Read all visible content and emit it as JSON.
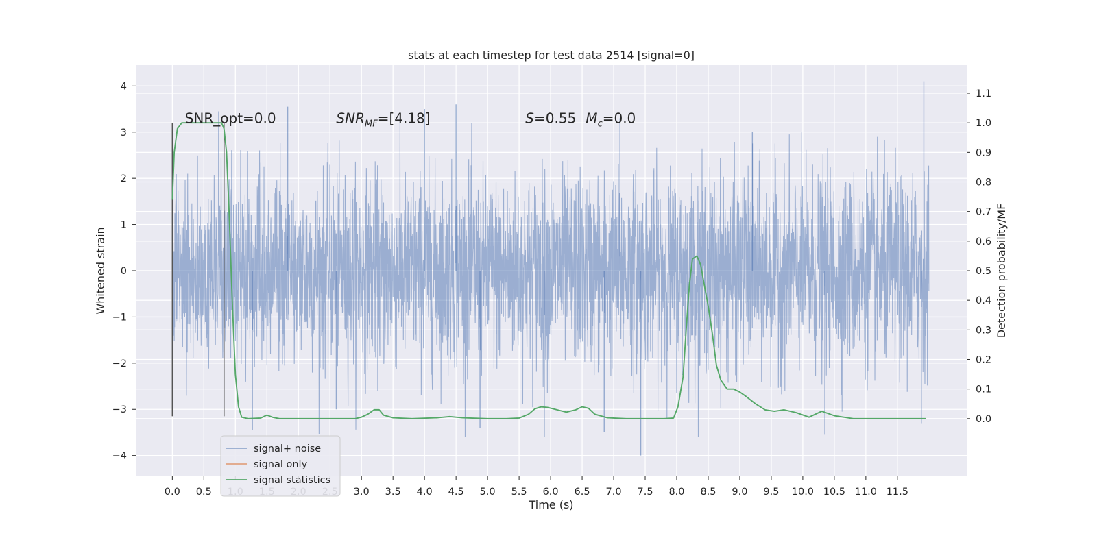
{
  "chart_data": {
    "type": "line",
    "title": "stats at each timestep for test data 2514 [signal=0]",
    "xlabel": "Time (s)",
    "ylabel_left": "Whitened strain",
    "ylabel_right": "Detection probability/MF",
    "xlim": [
      -0.58,
      12.6
    ],
    "ylim_left": [
      -4.45,
      4.45
    ],
    "ylim_right": [
      -0.195,
      1.195
    ],
    "x_ticks": [
      "0.0",
      "0.5",
      "1.0",
      "1.5",
      "2.0",
      "2.5",
      "3.0",
      "3.5",
      "4.0",
      "4.5",
      "5.0",
      "5.5",
      "6.0",
      "6.5",
      "7.0",
      "7.5",
      "8.0",
      "8.5",
      "9.0",
      "9.5",
      "10.0",
      "10.5",
      "11.0",
      "11.5"
    ],
    "y_ticks_left": [
      "4",
      "3",
      "2",
      "1",
      "0",
      "−1",
      "−2",
      "−3",
      "−4"
    ],
    "y_ticks_right": [
      "1.1",
      "1.0",
      "0.9",
      "0.8",
      "0.7",
      "0.6",
      "0.5",
      "0.4",
      "0.3",
      "0.2",
      "0.1",
      "0.0"
    ],
    "grid": true,
    "legend_position": "lower-left",
    "colors": {
      "background": "#eaeaf2",
      "grid": "#ffffff",
      "signal_noise": "#4c72b0",
      "signal_only": "#dd8452",
      "signal_statistics": "#55a868",
      "marker": "#555555"
    },
    "series": [
      {
        "name": "signal+ noise",
        "axis": "left",
        "x_range": [
          0.0,
          12.0
        ],
        "envelope_typical": [
          -1.3,
          1.3
        ],
        "description_value_range": [
          -4.0,
          4.1
        ],
        "spikes": [
          [
            11.92,
            4.1
          ],
          [
            7.43,
            -4.0
          ],
          [
            1.27,
            -3.45
          ],
          [
            6.85,
            -3.5
          ],
          [
            11.88,
            -3.3
          ],
          [
            10.35,
            -3.55
          ],
          [
            4.5,
            3.6
          ],
          [
            4.0,
            3.5
          ],
          [
            1.83,
            3.55
          ],
          [
            5.9,
            -3.6
          ],
          [
            4.88,
            -3.4
          ],
          [
            2.6,
            -3.0
          ],
          [
            7.1,
            3.3
          ],
          [
            9.2,
            3.0
          ]
        ]
      },
      {
        "name": "signal only",
        "axis": "left",
        "x": [],
        "y": []
      },
      {
        "name": "signal statistics",
        "axis": "right",
        "x": [
          0.0,
          0.03,
          0.08,
          0.15,
          0.25,
          0.4,
          0.55,
          0.7,
          0.78,
          0.82,
          0.86,
          0.9,
          0.95,
          1.0,
          1.05,
          1.1,
          1.2,
          1.4,
          1.5,
          1.6,
          1.7,
          1.9,
          2.2,
          2.6,
          2.9,
          3.0,
          3.1,
          3.2,
          3.28,
          3.35,
          3.5,
          3.8,
          4.2,
          4.4,
          4.6,
          5.0,
          5.3,
          5.5,
          5.65,
          5.75,
          5.85,
          5.95,
          6.1,
          6.25,
          6.4,
          6.5,
          6.6,
          6.7,
          6.9,
          7.2,
          7.6,
          7.8,
          7.95,
          8.02,
          8.1,
          8.15,
          8.2,
          8.25,
          8.32,
          8.38,
          8.43,
          8.5,
          8.57,
          8.63,
          8.7,
          8.8,
          8.9,
          9.0,
          9.1,
          9.25,
          9.4,
          9.55,
          9.7,
          9.9,
          10.1,
          10.3,
          10.5,
          10.8,
          11.2,
          11.6,
          11.95
        ],
        "y": [
          0.74,
          0.9,
          0.98,
          1.0,
          1.0,
          1.0,
          1.0,
          1.0,
          1.0,
          0.98,
          0.9,
          0.7,
          0.4,
          0.15,
          0.04,
          0.005,
          0.0,
          0.002,
          0.012,
          0.004,
          0.0,
          0.0,
          0.0,
          0.0,
          0.0,
          0.005,
          0.015,
          0.03,
          0.03,
          0.012,
          0.003,
          0.0,
          0.003,
          0.007,
          0.003,
          0.0,
          0.0,
          0.002,
          0.015,
          0.033,
          0.04,
          0.038,
          0.03,
          0.022,
          0.03,
          0.04,
          0.035,
          0.015,
          0.003,
          0.0,
          0.0,
          0.0,
          0.002,
          0.04,
          0.14,
          0.3,
          0.45,
          0.54,
          0.55,
          0.52,
          0.46,
          0.38,
          0.28,
          0.18,
          0.13,
          0.1,
          0.1,
          0.09,
          0.075,
          0.05,
          0.03,
          0.025,
          0.03,
          0.02,
          0.005,
          0.025,
          0.01,
          0.0,
          0.0,
          0.0,
          0.0
        ]
      }
    ],
    "vertical_lines_x": [
      0.0,
      0.82
    ],
    "annotations": [
      {
        "text": "SNR_opt=0.0",
        "x": 0.2,
        "y": 3.3
      },
      {
        "text_parts": [
          "SNR",
          "MF",
          "=[4.18]"
        ],
        "x": 2.6,
        "y": 3.3
      },
      {
        "text_parts": [
          "S",
          "=0.55",
          "M",
          "c",
          "=0.0"
        ],
        "x": 5.6,
        "y": 3.3
      }
    ]
  }
}
